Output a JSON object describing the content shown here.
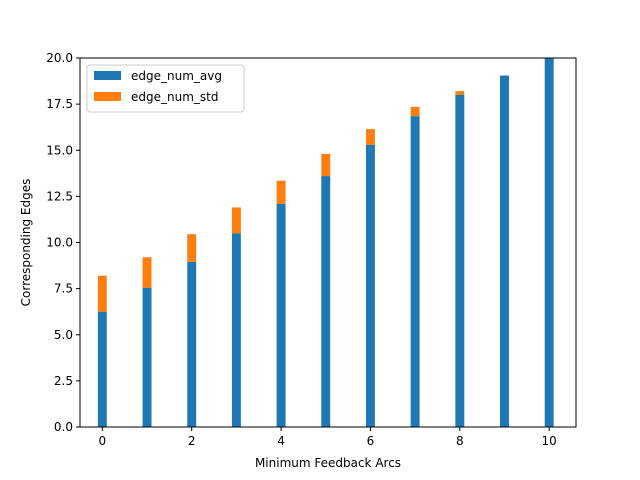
{
  "chart_data": {
    "type": "bar",
    "stacked": true,
    "xlabel": "Minimum Feedback Arcs",
    "ylabel": "Corresponding Edges",
    "x": [
      0,
      1,
      2,
      3,
      4,
      5,
      6,
      7,
      8,
      9,
      10
    ],
    "xlim": [
      -0.5,
      10.6
    ],
    "ylim": [
      0,
      20
    ],
    "xticks": [
      0,
      2,
      4,
      6,
      8,
      10
    ],
    "yticks": [
      0.0,
      2.5,
      5.0,
      7.5,
      10.0,
      12.5,
      15.0,
      17.5,
      20.0
    ],
    "ytick_labels": [
      "0.0",
      "2.5",
      "5.0",
      "7.5",
      "10.0",
      "12.5",
      "15.0",
      "17.5",
      "20.0"
    ],
    "grid": false,
    "legend_position": "upper-left",
    "series": [
      {
        "name": "edge_num_avg",
        "color": "#1f77b4",
        "values": [
          6.25,
          7.55,
          8.95,
          10.5,
          12.1,
          13.6,
          15.3,
          16.85,
          18.0,
          19.05,
          20.0
        ]
      },
      {
        "name": "edge_num_std",
        "color": "#ff7f0e",
        "values": [
          1.95,
          1.65,
          1.5,
          1.4,
          1.25,
          1.2,
          0.85,
          0.5,
          0.2,
          0.0,
          0.0
        ]
      }
    ]
  }
}
